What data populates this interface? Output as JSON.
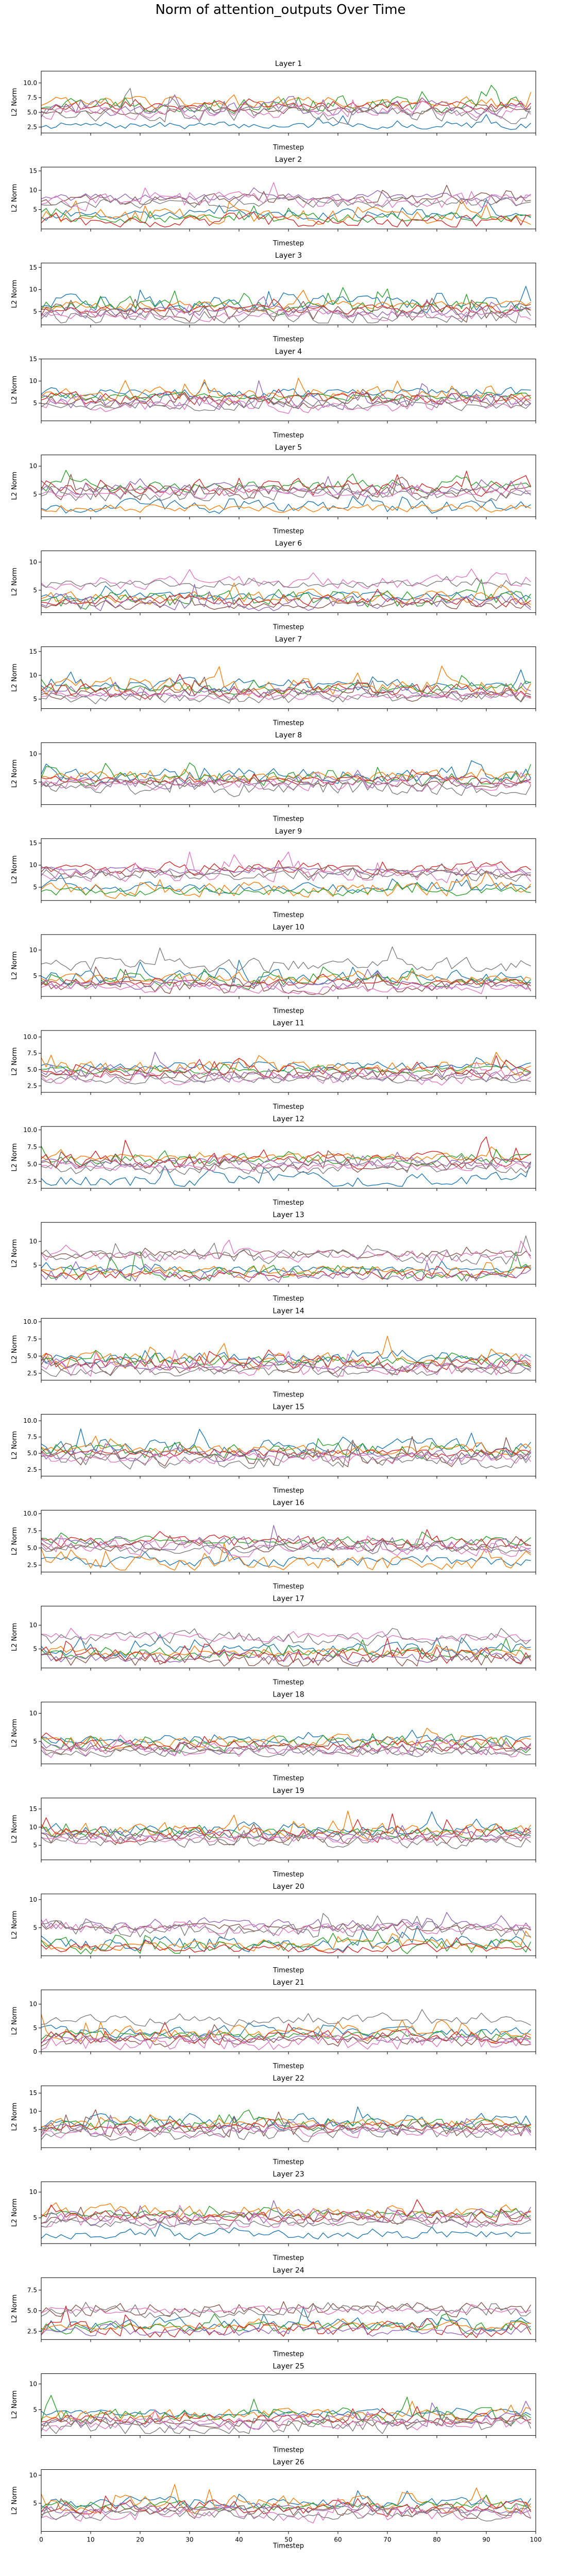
{
  "figure": {
    "title": "Norm of attention_outputs Over Time"
  },
  "chart_data": {
    "type": "line",
    "xlabel": "Timestep",
    "ylabel": "L2 Norm",
    "xlim": [
      0,
      100
    ],
    "x_ticks": [
      0,
      10,
      20,
      30,
      40,
      50,
      60,
      70,
      80,
      90,
      100
    ],
    "x": [
      0,
      1,
      2,
      3,
      4,
      5,
      6,
      7,
      8,
      9,
      10,
      11,
      12,
      13,
      14,
      15,
      16,
      17,
      18,
      19,
      20,
      21,
      22,
      23,
      24,
      25,
      26,
      27,
      28,
      29,
      30,
      31,
      32,
      33,
      34,
      35,
      36,
      37,
      38,
      39,
      40,
      41,
      42,
      43,
      44,
      45,
      46,
      47,
      48,
      49,
      50,
      51,
      52,
      53,
      54,
      55,
      56,
      57,
      58,
      59,
      60,
      61,
      62,
      63,
      64,
      65,
      66,
      67,
      68,
      69,
      70,
      71,
      72,
      73,
      74,
      75,
      76,
      77,
      78,
      79,
      80,
      81,
      82,
      83,
      84,
      85,
      86,
      87,
      88,
      89,
      90,
      91,
      92,
      93,
      94,
      95,
      96,
      97,
      98,
      99
    ],
    "series_colors": [
      "#1f77b4",
      "#ff7f0e",
      "#2ca02c",
      "#d62728",
      "#9467bd",
      "#8c564b",
      "#e377c2",
      "#7f7f7f"
    ],
    "panels": [
      {
        "title": "Layer 1",
        "ylim": [
          1.5,
          12
        ],
        "yticks": [
          "2.5",
          "5.0",
          "7.5",
          "10.0"
        ],
        "yticks_values": [
          2.5,
          5,
          7.5,
          10
        ]
      },
      {
        "title": "Layer 2",
        "ylim": [
          0,
          16
        ],
        "yticks": [
          "5",
          "10",
          "15"
        ],
        "yticks_values": [
          5,
          10,
          15
        ]
      },
      {
        "title": "Layer 3",
        "ylim": [
          2,
          16
        ],
        "yticks": [
          "5",
          "10",
          "15"
        ],
        "yticks_values": [
          5,
          10,
          15
        ]
      },
      {
        "title": "Layer 4",
        "ylim": [
          1,
          15
        ],
        "yticks": [
          "5",
          "10",
          "15"
        ],
        "yticks_values": [
          5,
          10,
          15
        ]
      },
      {
        "title": "Layer 5",
        "ylim": [
          1,
          12
        ],
        "yticks": [
          "5",
          "10"
        ],
        "yticks_values": [
          5,
          10
        ]
      },
      {
        "title": "Layer 6",
        "ylim": [
          1,
          12
        ],
        "yticks": [
          "5",
          "10"
        ],
        "yticks_values": [
          5,
          10
        ]
      },
      {
        "title": "Layer 7",
        "ylim": [
          3,
          16
        ],
        "yticks": [
          "5",
          "10",
          "15"
        ],
        "yticks_values": [
          5,
          10,
          15
        ]
      },
      {
        "title": "Layer 8",
        "ylim": [
          1,
          12
        ],
        "yticks": [
          "5",
          "10"
        ],
        "yticks_values": [
          5,
          10
        ]
      },
      {
        "title": "Layer 9",
        "ylim": [
          2,
          16
        ],
        "yticks": [
          "5",
          "10",
          "15"
        ],
        "yticks_values": [
          5,
          10,
          15
        ]
      },
      {
        "title": "Layer 10",
        "ylim": [
          1,
          13
        ],
        "yticks": [
          "5",
          "10"
        ],
        "yticks_values": [
          5,
          10
        ]
      },
      {
        "title": "Layer 11",
        "ylim": [
          1.5,
          11
        ],
        "yticks": [
          "2.5",
          "5.0",
          "7.5",
          "10.0"
        ],
        "yticks_values": [
          2.5,
          5,
          7.5,
          10
        ]
      },
      {
        "title": "Layer 12",
        "ylim": [
          1.5,
          10.5
        ],
        "yticks": [
          "2.5",
          "5.0",
          "7.5",
          "10.0"
        ],
        "yticks_values": [
          2.5,
          5,
          7.5,
          10
        ]
      },
      {
        "title": "Layer 13",
        "ylim": [
          1,
          14
        ],
        "yticks": [
          "5",
          "10"
        ],
        "yticks_values": [
          5,
          10
        ]
      },
      {
        "title": "Layer 14",
        "ylim": [
          1.5,
          10.5
        ],
        "yticks": [
          "2.5",
          "5.0",
          "7.5",
          "10.0"
        ],
        "yticks_values": [
          2.5,
          5,
          7.5,
          10
        ]
      },
      {
        "title": "Layer 15",
        "ylim": [
          1.5,
          11
        ],
        "yticks": [
          "2.5",
          "5.0",
          "7.5",
          "10.0"
        ],
        "yticks_values": [
          2.5,
          5,
          7.5,
          10
        ]
      },
      {
        "title": "Layer 16",
        "ylim": [
          1.5,
          10.5
        ],
        "yticks": [
          "2.5",
          "5.0",
          "7.5",
          "10.0"
        ],
        "yticks_values": [
          2.5,
          5,
          7.5,
          10
        ]
      },
      {
        "title": "Layer 17",
        "ylim": [
          1,
          14
        ],
        "yticks": [
          "5",
          "10"
        ],
        "yticks_values": [
          5,
          10
        ]
      },
      {
        "title": "Layer 18",
        "ylim": [
          1,
          12
        ],
        "yticks": [
          "5",
          "10"
        ],
        "yticks_values": [
          5,
          10
        ]
      },
      {
        "title": "Layer 19",
        "ylim": [
          1,
          18
        ],
        "yticks": [
          "5",
          "10",
          "15"
        ],
        "yticks_values": [
          5,
          10,
          15
        ]
      },
      {
        "title": "Layer 20",
        "ylim": [
          0,
          11
        ],
        "yticks": [
          "5",
          "10"
        ],
        "yticks_values": [
          5,
          10
        ]
      },
      {
        "title": "Layer 21",
        "ylim": [
          0,
          13
        ],
        "yticks": [
          "0",
          "5",
          "10"
        ],
        "yticks_values": [
          0,
          5,
          10
        ]
      },
      {
        "title": "Layer 22",
        "ylim": [
          0,
          17
        ],
        "yticks": [
          "5",
          "10",
          "15"
        ],
        "yticks_values": [
          5,
          10,
          15
        ]
      },
      {
        "title": "Layer 23",
        "ylim": [
          0,
          12
        ],
        "yticks": [
          "5",
          "10"
        ],
        "yticks_values": [
          5,
          10
        ]
      },
      {
        "title": "Layer 24",
        "ylim": [
          1.5,
          9
        ],
        "yticks": [
          "2.5",
          "5.0",
          "7.5"
        ],
        "yticks_values": [
          2.5,
          5,
          7.5
        ]
      },
      {
        "title": "Layer 25",
        "ylim": [
          0,
          12
        ],
        "yticks": [
          "5",
          "10"
        ],
        "yticks_values": [
          5,
          10
        ]
      },
      {
        "title": "Layer 26",
        "ylim": [
          0,
          11
        ],
        "yticks": [
          "5",
          "10"
        ],
        "yticks_values": [
          5,
          10
        ]
      }
    ]
  }
}
